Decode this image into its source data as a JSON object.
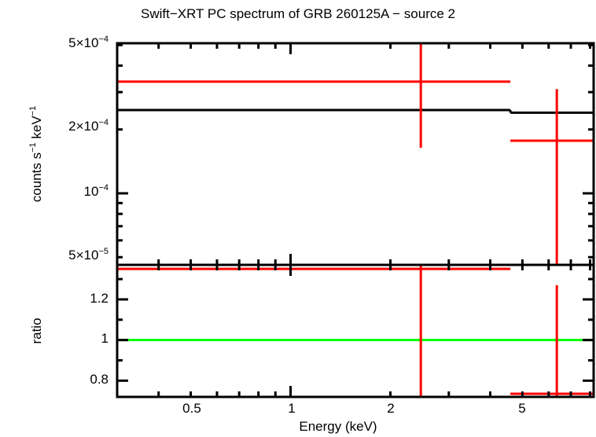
{
  "chart_data": [
    {
      "panel": "spectrum",
      "type": "scatter",
      "title": "Swift−XRT PC spectrum of GRB 260125A − source 2",
      "xlabel": "Energy (keV)",
      "ylabel": "counts s⁻¹ keV⁻¹",
      "xscale": "log",
      "yscale": "log",
      "xlim": [
        0.3,
        8.2
      ],
      "ylim": [
        4.6e-05,
        0.00051
      ],
      "x_ticks": [
        0.5,
        1,
        2,
        5
      ],
      "x_tick_labels": [
        "0.5",
        "1",
        "2",
        "5"
      ],
      "y_ticks": [
        5e-05,
        0.0001,
        0.0002,
        0.0005
      ],
      "y_tick_labels": [
        "5×10⁻⁵",
        "10⁻⁴",
        "2×10⁻⁴",
        "5×10⁻⁴"
      ],
      "series": [
        {
          "name": "data",
          "color": "#ff0000",
          "style": "crosses",
          "points": [
            {
              "x": 2.47,
              "x_lo": 0.3,
              "x_hi": 4.6,
              "y": 0.000336,
              "y_lo": 0.000164,
              "y_hi": 0.00051
            },
            {
              "x": 6.35,
              "x_lo": 4.6,
              "x_hi": 8.2,
              "y": 0.000177,
              "y_lo": 4.6e-05,
              "y_hi": 0.00031
            }
          ]
        },
        {
          "name": "model",
          "color": "#000000",
          "style": "step",
          "steps": [
            {
              "x_lo": 0.3,
              "x_hi": 4.6,
              "y": 0.000247
            },
            {
              "x_lo": 4.6,
              "x_hi": 8.2,
              "y": 0.00024
            }
          ]
        }
      ],
      "grid": false,
      "legend": null
    },
    {
      "panel": "ratio",
      "type": "scatter",
      "xlabel": "Energy (keV)",
      "ylabel": "ratio",
      "xscale": "log",
      "yscale": "linear",
      "xlim": [
        0.3,
        8.2
      ],
      "ylim": [
        0.72,
        1.37
      ],
      "x_ticks": [
        0.5,
        1,
        2,
        5
      ],
      "x_tick_labels": [
        "0.5",
        "1",
        "2",
        "5"
      ],
      "y_ticks": [
        0.8,
        1,
        1.2
      ],
      "y_tick_labels": [
        "0.8",
        "1",
        "1.2"
      ],
      "series": [
        {
          "name": "ratio",
          "color": "#ff0000",
          "style": "crosses",
          "points": [
            {
              "x": 2.47,
              "x_lo": 0.3,
              "x_hi": 4.6,
              "y": 1.35,
              "y_lo": 0.72,
              "y_hi": 1.37
            },
            {
              "x": 6.35,
              "x_lo": 4.6,
              "x_hi": 8.2,
              "y": 0.73,
              "y_lo": 0.72,
              "y_hi": 1.27
            }
          ]
        },
        {
          "name": "unity",
          "color": "#00ff00",
          "style": "line",
          "y": 1
        }
      ],
      "grid": false,
      "legend": null
    }
  ],
  "labels": {
    "title": "Swift−XRT PC spectrum of GRB 260125A − source 2",
    "xlabel": "Energy (keV)",
    "ylabel_top_main": "counts s",
    "ylabel_top_exp1": "−1",
    "ylabel_top_mid": " keV",
    "ylabel_top_exp2": "−1",
    "ylabel_bottom": "ratio",
    "yticks_top": [
      {
        "mant": "5×10",
        "exp": "−4"
      },
      {
        "mant": "2×10",
        "exp": "−4"
      },
      {
        "mant": "10",
        "exp": "−4"
      },
      {
        "mant": "5×10",
        "exp": "−5"
      }
    ],
    "yticks_bottom": [
      "1.2",
      "1",
      "0.8"
    ],
    "xticks": [
      "0.5",
      "1",
      "2",
      "5"
    ]
  },
  "colors": {
    "data": "#ff0000",
    "model": "#000000",
    "unity": "#00ff00",
    "axes": "#000000"
  }
}
